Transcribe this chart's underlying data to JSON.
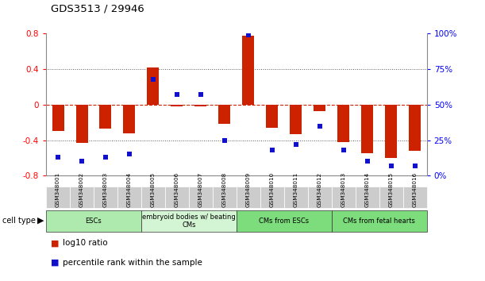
{
  "title": "GDS3513 / 29946",
  "samples": [
    "GSM348001",
    "GSM348002",
    "GSM348003",
    "GSM348004",
    "GSM348005",
    "GSM348006",
    "GSM348007",
    "GSM348008",
    "GSM348009",
    "GSM348010",
    "GSM348011",
    "GSM348012",
    "GSM348013",
    "GSM348014",
    "GSM348015",
    "GSM348016"
  ],
  "log10_ratio": [
    -0.3,
    -0.43,
    -0.27,
    -0.32,
    0.42,
    -0.02,
    -0.02,
    -0.22,
    0.78,
    -0.26,
    -0.33,
    -0.07,
    -0.42,
    -0.55,
    -0.6,
    -0.52
  ],
  "percentile_rank": [
    13,
    10,
    13,
    15,
    68,
    57,
    57,
    25,
    99,
    18,
    22,
    35,
    18,
    10,
    7,
    7
  ],
  "cell_types": [
    {
      "label": "ESCs",
      "start": 0,
      "end": 3,
      "color": "#aeeaae"
    },
    {
      "label": "embryoid bodies w/ beating\nCMs",
      "start": 4,
      "end": 7,
      "color": "#d4f5d4"
    },
    {
      "label": "CMs from ESCs",
      "start": 8,
      "end": 11,
      "color": "#7ddd7d"
    },
    {
      "label": "CMs from fetal hearts",
      "start": 12,
      "end": 15,
      "color": "#7ddd7d"
    }
  ],
  "bar_color": "#cc2200",
  "scatter_color": "#1111cc",
  "ylim_left": [
    -0.8,
    0.8
  ],
  "ylim_right": [
    0,
    100
  ],
  "yticks_left": [
    -0.8,
    -0.4,
    0.0,
    0.4,
    0.8
  ],
  "ytick_labels_left": [
    "-0.8",
    "-0.4",
    "0",
    "0.4",
    "0.8"
  ],
  "yticks_right": [
    0,
    25,
    50,
    75,
    100
  ],
  "ytick_labels_right": [
    "0%",
    "25%",
    "50%",
    "75%",
    "100%"
  ],
  "hline0_color": "#cc2200",
  "hline04_color": "#555555",
  "legend_ratio_label": "log10 ratio",
  "legend_percentile_label": "percentile rank within the sample",
  "cell_type_label": "cell type",
  "sample_box_color": "#cccccc",
  "bg_color": "#ffffff"
}
